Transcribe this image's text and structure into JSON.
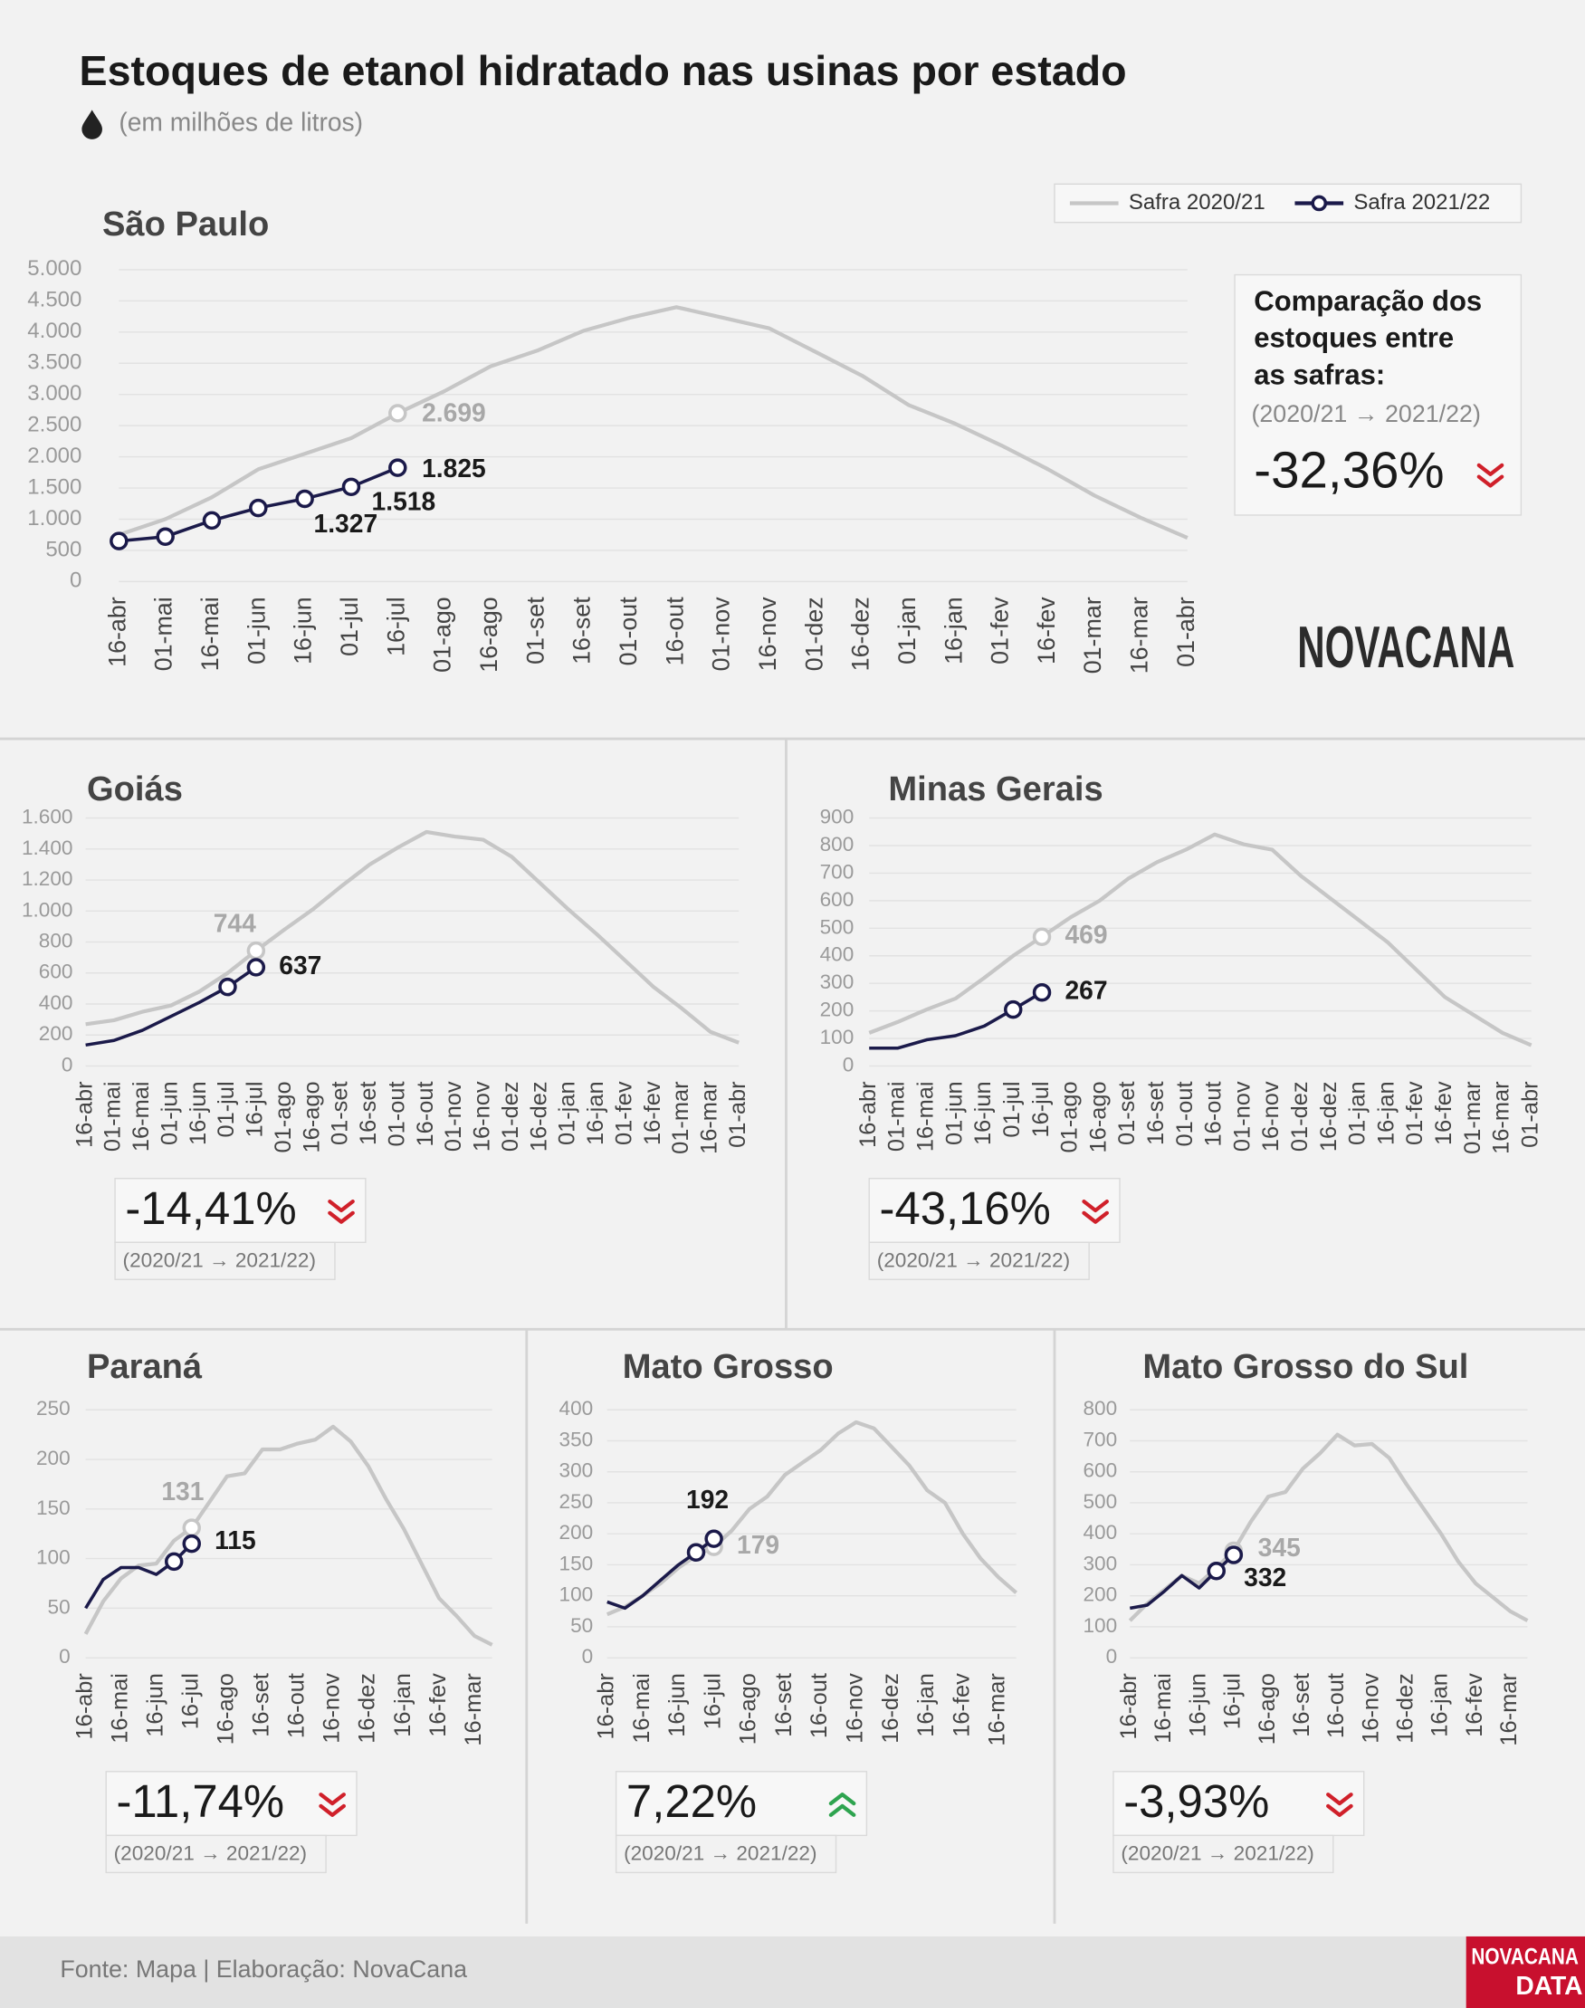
{
  "title": "Estoques de etanol hidratado nas usinas por estado",
  "subtitle": "(em milhões de litros)",
  "logo": "NOVACANA",
  "footer": "Fonte: Mapa | Elaboração: NovaCana",
  "footer_logo": [
    "NOVACANA",
    "DATA"
  ],
  "chart_data": [
    {
      "type": "line",
      "title": "São Paulo",
      "legend": "top-right",
      "grid": true,
      "categories": [
        "16-abr",
        "01-mai",
        "16-mai",
        "01-jun",
        "16-jun",
        "01-jul",
        "16-jul",
        "01-ago",
        "16-ago",
        "01-set",
        "16-set",
        "01-out",
        "16-out",
        "01-nov",
        "16-nov",
        "01-dez",
        "16-dez",
        "01-jan",
        "16-jan",
        "01-fev",
        "16-fev",
        "01-mar",
        "16-mar",
        "01-abr"
      ],
      "series": [
        {
          "name": "Safra 2020/21",
          "color": "#c6c6c6",
          "values": [
            750,
            1000,
            1350,
            1800,
            2050,
            2300,
            2699,
            3050,
            3450,
            3700,
            4020,
            4230,
            4400,
            4230,
            4060,
            3680,
            3300,
            2830,
            2530,
            2180,
            1800,
            1380,
            1020,
            700
          ],
          "value_labels": [
            null,
            null,
            null,
            null,
            null,
            null,
            "2.699",
            null,
            null,
            null,
            null,
            null,
            null,
            null,
            null,
            null,
            null,
            null,
            null,
            null,
            null,
            null,
            null,
            null
          ]
        },
        {
          "name": "Safra 2021/22",
          "color": "#1b1a4a",
          "values": [
            650,
            720,
            980,
            1180,
            1327,
            1518,
            1825,
            null,
            null,
            null,
            null,
            null,
            null,
            null,
            null,
            null,
            null,
            null,
            null,
            null,
            null,
            null,
            null,
            null
          ],
          "value_labels": [
            null,
            null,
            null,
            null,
            "1.327",
            "1.518",
            "1.825",
            null,
            null,
            null,
            null,
            null,
            null,
            null,
            null,
            null,
            null,
            null,
            null,
            null,
            null,
            null,
            null,
            null
          ]
        }
      ],
      "ylim": [
        0,
        5000
      ],
      "yticks": [
        0,
        500,
        {
          "value": 1000,
          "label": "1.000"
        },
        {
          "value": 1500,
          "label": "1.500"
        },
        {
          "value": 2000,
          "label": "2.000"
        },
        {
          "value": 2500,
          "label": "2.500"
        },
        {
          "value": 3000,
          "label": "3.000"
        },
        {
          "value": 3500,
          "label": "3.500"
        },
        {
          "value": 4000,
          "label": "4.000"
        },
        {
          "value": 4500,
          "label": "4.500"
        },
        {
          "value": 5000,
          "label": "5.000"
        }
      ],
      "comparison": {
        "heading": [
          "Comparação dos",
          "estoques entre",
          "as safras:"
        ],
        "period": "(2020/21 → 2021/22)",
        "value": -32.36,
        "label": "-32,36%"
      }
    },
    {
      "type": "line",
      "title": "Goiás",
      "grid": true,
      "categories": [
        "16-abr",
        "01-mai",
        "16-mai",
        "01-jun",
        "16-jun",
        "01-jul",
        "16-jul",
        "01-ago",
        "16-ago",
        "01-set",
        "16-set",
        "01-out",
        "16-out",
        "01-nov",
        "16-nov",
        "01-dez",
        "16-dez",
        "01-jan",
        "16-jan",
        "01-fev",
        "16-fev",
        "01-mar",
        "16-mar",
        "01-abr"
      ],
      "series": [
        {
          "color": "#c6c6c6",
          "values": [
            270,
            295,
            350,
            390,
            480,
            600,
            744,
            880,
            1010,
            1160,
            1300,
            1410,
            1510,
            1480,
            1460,
            1350,
            1180,
            1010,
            850,
            680,
            510,
            370,
            220,
            150
          ],
          "value_labels": [
            null,
            null,
            null,
            null,
            null,
            null,
            "744",
            null,
            null,
            null,
            null,
            null,
            null,
            null,
            null,
            null,
            null,
            null,
            null,
            null,
            null,
            null,
            null,
            null
          ]
        },
        {
          "color": "#1b1a4a",
          "values": [
            135,
            165,
            230,
            320,
            410,
            510,
            637,
            null,
            null,
            null,
            null,
            null,
            null,
            null,
            null,
            null,
            null,
            null,
            null,
            null,
            null,
            null,
            null,
            null
          ],
          "value_labels": [
            null,
            null,
            null,
            null,
            null,
            null,
            "637",
            null,
            null,
            null,
            null,
            null,
            null,
            null,
            null,
            null,
            null,
            null,
            null,
            null,
            null,
            null,
            null,
            null
          ]
        }
      ],
      "ylim": [
        0,
        1600
      ],
      "yticks": [
        0,
        200,
        400,
        600,
        800,
        {
          "value": 1000,
          "label": "1.000"
        },
        {
          "value": 1200,
          "label": "1.200"
        },
        {
          "value": 1400,
          "label": "1.400"
        },
        {
          "value": 1600,
          "label": "1.600"
        }
      ],
      "comparison": {
        "period": "(2020/21 → 2021/22)",
        "value": -14.41,
        "label": "-14,41%"
      }
    },
    {
      "type": "line",
      "title": "Minas Gerais",
      "grid": true,
      "categories": [
        "16-abr",
        "01-mai",
        "16-mai",
        "01-jun",
        "16-jun",
        "01-jul",
        "16-jul",
        "01-ago",
        "16-ago",
        "01-set",
        "16-set",
        "01-out",
        "16-out",
        "01-nov",
        "16-nov",
        "01-dez",
        "16-dez",
        "01-jan",
        "16-jan",
        "01-fev",
        "16-fev",
        "01-mar",
        "16-mar",
        "01-abr"
      ],
      "series": [
        {
          "color": "#c6c6c6",
          "values": [
            120,
            160,
            205,
            245,
            320,
            400,
            469,
            540,
            600,
            680,
            740,
            785,
            840,
            805,
            785,
            690,
            610,
            530,
            450,
            350,
            250,
            185,
            120,
            75
          ],
          "value_labels": [
            null,
            null,
            null,
            null,
            null,
            null,
            "469",
            null,
            null,
            null,
            null,
            null,
            null,
            null,
            null,
            null,
            null,
            null,
            null,
            null,
            null,
            null,
            null,
            null
          ]
        },
        {
          "color": "#1b1a4a",
          "values": [
            65,
            65,
            95,
            110,
            145,
            205,
            267,
            null,
            null,
            null,
            null,
            null,
            null,
            null,
            null,
            null,
            null,
            null,
            null,
            null,
            null,
            null,
            null,
            null
          ],
          "value_labels": [
            null,
            null,
            null,
            null,
            null,
            null,
            "267",
            null,
            null,
            null,
            null,
            null,
            null,
            null,
            null,
            null,
            null,
            null,
            null,
            null,
            null,
            null,
            null,
            null
          ]
        }
      ],
      "ylim": [
        0,
        900
      ],
      "yticks": [
        0,
        100,
        200,
        300,
        400,
        500,
        600,
        700,
        800,
        900
      ],
      "comparison": {
        "period": "(2020/21 → 2021/22)",
        "value": -43.16,
        "label": "-43,16%"
      }
    },
    {
      "type": "line",
      "title": "Paraná",
      "grid": true,
      "categories": [
        "16-abr",
        null,
        "16-mai",
        null,
        "16-jun",
        null,
        "16-jul",
        null,
        "16-ago",
        null,
        "16-set",
        null,
        "16-out",
        null,
        "16-nov",
        null,
        "16-dez",
        null,
        "16-jan",
        null,
        "16-fev",
        null,
        "16-mar",
        null
      ],
      "series": [
        {
          "color": "#c6c6c6",
          "values": [
            24,
            57,
            80,
            93,
            95,
            118,
            131,
            157,
            183,
            186,
            210,
            210,
            216,
            220,
            233,
            218,
            193,
            160,
            130,
            95,
            60,
            42,
            22,
            13
          ],
          "value_labels": [
            null,
            null,
            null,
            null,
            null,
            null,
            "131",
            null,
            null,
            null,
            null,
            null,
            null,
            null,
            null,
            null,
            null,
            null,
            null,
            null,
            null,
            null,
            null,
            null
          ]
        },
        {
          "color": "#1b1a4a",
          "values": [
            50,
            79,
            91,
            91,
            84,
            97,
            115,
            null,
            null,
            null,
            null,
            null,
            null,
            null,
            null,
            null,
            null,
            null,
            null,
            null,
            null,
            null,
            null,
            null
          ],
          "value_labels": [
            null,
            null,
            null,
            null,
            null,
            null,
            "115",
            null,
            null,
            null,
            null,
            null,
            null,
            null,
            null,
            null,
            null,
            null,
            null,
            null,
            null,
            null,
            null,
            null
          ]
        }
      ],
      "ylim": [
        0,
        250
      ],
      "yticks": [
        0,
        50,
        100,
        150,
        200,
        250
      ],
      "comparison": {
        "period": "(2020/21 → 2021/22)",
        "value": -11.74,
        "label": "-11,74%"
      }
    },
    {
      "type": "line",
      "title": "Mato Grosso",
      "grid": true,
      "categories": [
        "16-abr",
        null,
        "16-mai",
        null,
        "16-jun",
        null,
        "16-jul",
        null,
        "16-ago",
        null,
        "16-set",
        null,
        "16-out",
        null,
        "16-nov",
        null,
        "16-dez",
        null,
        "16-jan",
        null,
        "16-fev",
        null,
        "16-mar",
        null
      ],
      "series": [
        {
          "color": "#c6c6c6",
          "values": [
            70,
            82,
            100,
            120,
            145,
            165,
            179,
            205,
            240,
            260,
            295,
            315,
            335,
            362,
            380,
            370,
            340,
            310,
            270,
            250,
            200,
            160,
            130,
            105
          ],
          "value_labels": [
            null,
            null,
            null,
            null,
            null,
            null,
            "179",
            null,
            null,
            null,
            null,
            null,
            null,
            null,
            null,
            null,
            null,
            null,
            null,
            null,
            null,
            null,
            null,
            null
          ]
        },
        {
          "color": "#1b1a4a",
          "values": [
            90,
            80,
            100,
            125,
            150,
            170,
            192,
            null,
            null,
            null,
            null,
            null,
            null,
            null,
            null,
            null,
            null,
            null,
            null,
            null,
            null,
            null,
            null,
            null
          ],
          "value_labels": [
            null,
            null,
            null,
            null,
            null,
            null,
            "192",
            null,
            null,
            null,
            null,
            null,
            null,
            null,
            null,
            null,
            null,
            null,
            null,
            null,
            null,
            null,
            null,
            null
          ]
        }
      ],
      "ylim": [
        0,
        400
      ],
      "yticks": [
        0,
        50,
        100,
        150,
        200,
        250,
        300,
        350,
        400
      ],
      "comparison": {
        "period": "(2020/21 → 2021/22)",
        "value": 7.22,
        "label": "7,22%"
      }
    },
    {
      "type": "line",
      "title": "Mato Grosso do Sul",
      "grid": true,
      "categories": [
        "16-abr",
        null,
        "16-mai",
        null,
        "16-jun",
        null,
        "16-jul",
        null,
        "16-ago",
        null,
        "16-set",
        null,
        "16-out",
        null,
        "16-nov",
        null,
        "16-dez",
        null,
        "16-jan",
        null,
        "16-fev",
        null,
        "16-mar",
        null
      ],
      "series": [
        {
          "color": "#c6c6c6",
          "values": [
            120,
            175,
            220,
            265,
            240,
            290,
            345,
            440,
            520,
            535,
            610,
            660,
            720,
            685,
            690,
            645,
            560,
            480,
            400,
            310,
            240,
            195,
            150,
            120
          ],
          "value_labels": [
            null,
            null,
            null,
            null,
            null,
            null,
            "345",
            null,
            null,
            null,
            null,
            null,
            null,
            null,
            null,
            null,
            null,
            null,
            null,
            null,
            null,
            null,
            null,
            null
          ]
        },
        {
          "color": "#1b1a4a",
          "values": [
            160,
            170,
            215,
            265,
            225,
            280,
            332,
            null,
            null,
            null,
            null,
            null,
            null,
            null,
            null,
            null,
            null,
            null,
            null,
            null,
            null,
            null,
            null,
            null
          ],
          "value_labels": [
            null,
            null,
            null,
            null,
            null,
            null,
            "332",
            null,
            null,
            null,
            null,
            null,
            null,
            null,
            null,
            null,
            null,
            null,
            null,
            null,
            null,
            null,
            null,
            null
          ]
        }
      ],
      "ylim": [
        0,
        800
      ],
      "yticks": [
        0,
        100,
        200,
        300,
        400,
        500,
        600,
        700,
        800
      ],
      "comparison": {
        "period": "(2020/21 → 2021/22)",
        "value": -3.93,
        "label": "-3,93%"
      }
    }
  ]
}
